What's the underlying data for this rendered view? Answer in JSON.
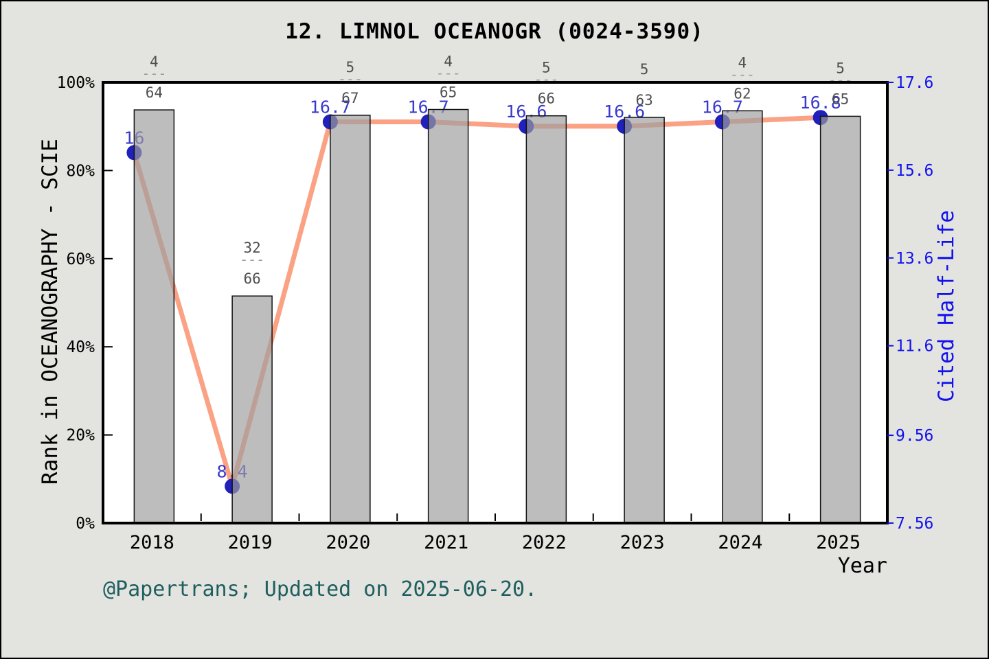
{
  "title": "12. LIMNOL OCEANOGR (0024-3590)",
  "footer": "@Papertrans; Updated on 2025-06-20.",
  "colors": {
    "background": "#E3E3E0",
    "plot_background": "#FFFFFF",
    "frame": "#000000",
    "bar_fill": "#9E9E9E",
    "bar_edge": "#111111",
    "line": "#FBA285",
    "marker": "#2020BB",
    "marker_label": "#3939CD",
    "right_axis_text": "#1212EE",
    "left_axis_text": "#000000",
    "fraction_text": "#4F4F4F",
    "fraction_dash": "#9C9C9C",
    "footer_text": "#1E5F5E"
  },
  "chart_data": {
    "type": "bar",
    "subtype": "bar-and-line-combo",
    "title": "12. LIMNOL OCEANOGR (0024-3590)",
    "categories": [
      "2018",
      "2019",
      "2020",
      "2021",
      "2022",
      "2023",
      "2024",
      "2025"
    ],
    "series": [
      {
        "name": "Rank in OCEANOGRAPHY - SCIE",
        "type": "bar",
        "axis": "left",
        "rank": [
          4,
          32,
          5,
          4,
          5,
          5,
          4,
          5
        ],
        "total": [
          64,
          66,
          67,
          65,
          66,
          63,
          62,
          65
        ],
        "fraction_labels": [
          {
            "numerator": "4",
            "denominator": "64"
          },
          {
            "numerator": "32",
            "denominator": "66"
          },
          {
            "numerator": "5",
            "denominator": "67"
          },
          {
            "numerator": "4",
            "denominator": "65"
          },
          {
            "numerator": "5",
            "denominator": "66"
          },
          {
            "numerator": "5",
            "denominator": "63"
          },
          {
            "numerator": "4",
            "denominator": "62"
          },
          {
            "numerator": "5",
            "denominator": "65"
          }
        ],
        "values_pct": [
          93.75,
          51.52,
          92.54,
          93.85,
          92.42,
          92.06,
          93.55,
          92.31
        ]
      },
      {
        "name": "Cited Half-Life",
        "type": "line",
        "axis": "right",
        "values": [
          16,
          8.4,
          16.7,
          16.7,
          16.6,
          16.6,
          16.7,
          16.8
        ],
        "point_labels": [
          "16",
          "8.4",
          "16.7",
          "16.7",
          "16.6",
          "16.6",
          "16.7",
          "16.8"
        ]
      }
    ],
    "x_axis": {
      "label": "Year",
      "tick_labels": [
        "2018",
        "2019",
        "2020",
        "2021",
        "2022",
        "2023",
        "2024",
        "2025"
      ]
    },
    "left_axis": {
      "label": "Rank in OCEANOGRAPHY - SCIE",
      "tick_labels": [
        "0%",
        "20%",
        "40%",
        "60%",
        "80%",
        "100%"
      ],
      "tick_values": [
        0,
        20,
        40,
        60,
        80,
        100
      ],
      "range": [
        0,
        100
      ]
    },
    "right_axis": {
      "label": "Cited Half-Life",
      "tick_labels": [
        "7.56",
        "9.56",
        "11.6",
        "13.6",
        "15.6",
        "17.6"
      ],
      "tick_values": [
        7.56,
        9.56,
        11.6,
        13.6,
        15.6,
        17.6
      ],
      "range": [
        7.56,
        17.6
      ]
    },
    "grid": false,
    "legend": false
  }
}
